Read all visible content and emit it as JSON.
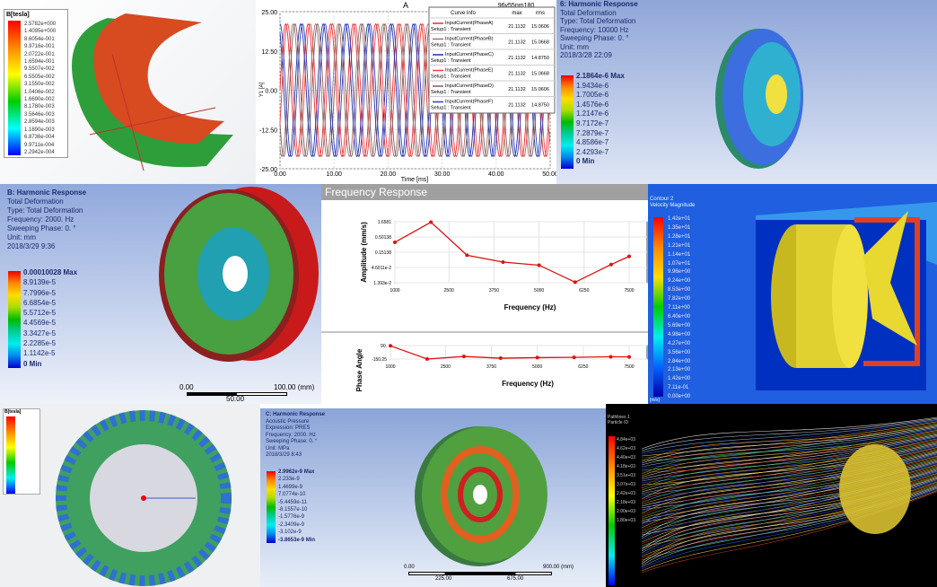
{
  "magnetic": {
    "title": "B[tesla]",
    "values": [
      "2.5782e+000",
      "1.4095e+000",
      "8.6054e-001",
      "9.9716e-001",
      "2.0722e-001",
      "1.6594e-001",
      "9.5507e-002",
      "6.5505e-002",
      "3.1550e-002",
      "1.0406e-002",
      "1.6690e-002",
      "8.1780e-003",
      "3.5646e-003",
      "2.8594e-003",
      "1.1890e-003",
      "6.8736e-004",
      "9.9711e-004",
      "2.2942e-004"
    ]
  },
  "current_chart": {
    "chart_data": {
      "type": "line",
      "title": "A",
      "subtitle": "96v55nm180",
      "ylabel": "Y1 [A]",
      "xlabel": "Time [ms]",
      "xlim": [
        0,
        50
      ],
      "ylim": [
        -25,
        25
      ],
      "xticks": [
        "0.00",
        "10.00",
        "20.00",
        "30.00",
        "40.00",
        "50.00"
      ],
      "yticks": [
        "25.00",
        "12.50",
        "0.00",
        "-12.50",
        "-25.00"
      ],
      "grid": true,
      "legend_position": "top-right",
      "legend_headers": [
        "Curve Info",
        "max",
        "rms"
      ],
      "series": [
        {
          "name": "InputCurrent(PhaseA)",
          "setup": "Setup1 : Transient",
          "max": "21.1132",
          "rms": "15.0606",
          "color": "#e03030",
          "amplitude": 21.1132,
          "frequency_hz": 240,
          "phase_deg": 0
        },
        {
          "name": "InputCurrent(PhaseB)",
          "setup": "Setup1 : Transient",
          "max": "21.1132",
          "rms": "15.0668",
          "color": "#a07070",
          "amplitude": 21.1132,
          "frequency_hz": 240,
          "phase_deg": 120
        },
        {
          "name": "InputCurrent(PhaseC)",
          "setup": "Setup1 : Transient",
          "max": "21.1132",
          "rms": "14.8750",
          "color": "#2030a0",
          "amplitude": 21.1132,
          "frequency_hz": 240,
          "phase_deg": 240
        },
        {
          "name": "InputCurrent(PhaseE)",
          "setup": "Setup1 : Transient",
          "max": "21.1132",
          "rms": "15.0668",
          "color": "#f04040",
          "amplitude": 21.1132,
          "frequency_hz": 240,
          "phase_deg": 30
        },
        {
          "name": "InputCurrent(PhaseD)",
          "setup": "Setup1 : Transient",
          "max": "21.1132",
          "rms": "15.0606",
          "color": "#806060",
          "amplitude": 21.1132,
          "frequency_hz": 240,
          "phase_deg": 150
        },
        {
          "name": "InputCurrent(PhaseF)",
          "setup": "Setup1 : Transient",
          "max": "21.1132",
          "rms": "14.8750",
          "color": "#3040c0",
          "amplitude": 21.1132,
          "frequency_hz": 240,
          "phase_deg": 270
        }
      ]
    }
  },
  "harmonic_10000": {
    "lines": [
      "6: Harmonic Response",
      "Total Deformation",
      "Type: Total Deformation",
      "Frequency: 10000 Hz",
      "Sweeping Phase: 0. °",
      "Unit: mm",
      "2018/3/28 22:09"
    ],
    "values": [
      "2.1864e-6 Max",
      "1.9434e-6",
      "1.7005e-6",
      "1.4576e-6",
      "1.2147e-6",
      "9.7172e-7",
      "7.2879e-7",
      "4.8586e-7",
      "2.4293e-7",
      "0 Min"
    ]
  },
  "harmonic_2000": {
    "lines": [
      "B: Harmonic Response",
      "Total Deformation",
      "Type: Total Deformation",
      "Frequency: 2000. Hz",
      "Sweeping Phase: 0. °",
      "Unit: mm",
      "2018/3/29 9:36"
    ],
    "values": [
      "0.00010028 Max",
      "8.9139e-5",
      "7.7996e-5",
      "6.6854e-5",
      "5.5712e-5",
      "4.4569e-5",
      "3.3427e-5",
      "2.2285e-5",
      "1.1142e-5",
      "0 Min"
    ],
    "scale": {
      "start": "0.00",
      "end": "100.00 (mm)",
      "mid": "50.00"
    }
  },
  "frequency_response": {
    "title": "Frequency Response",
    "chart_data": [
      {
        "type": "line",
        "ylabel": "Amplitude (mm/s)",
        "xlabel": "Frequency (Hz)",
        "y_scale": "log",
        "xlim": [
          1000,
          7500
        ],
        "ylim": [
          0.01393,
          1.6581
        ],
        "xticks": [
          "1000",
          "2500",
          "3750",
          "5000",
          "6250",
          "7500"
        ],
        "yticks": [
          "1.6581",
          "0.50138",
          "0.15138",
          "4.6011e-2",
          "1.393e-2"
        ],
        "color": "#e01010",
        "x": [
          1000,
          2000,
          3000,
          4000,
          5000,
          6000,
          7000,
          7500
        ],
        "y": [
          0.33,
          1.6,
          0.12,
          0.07,
          0.055,
          0.0145,
          0.058,
          0.11
        ]
      },
      {
        "type": "line",
        "ylabel": "Phase Angle",
        "xlabel": "Frequency (Hz)",
        "xlim": [
          1000,
          7500
        ],
        "ylim": [
          -150.25,
          90
        ],
        "xticks": [
          "1000",
          "2500",
          "3750",
          "5000",
          "6250",
          "7500"
        ],
        "yticks": [
          "90.",
          "-150.25"
        ],
        "color": "#e01010",
        "x": [
          1000,
          2000,
          3000,
          4000,
          5000,
          6000,
          7000,
          7500
        ],
        "y": [
          85,
          -150,
          -105,
          -135,
          -125,
          -120,
          -110,
          -112
        ]
      }
    ]
  },
  "cfd_velocity": {
    "title": [
      "Contour 2",
      "Velocity Magnitude"
    ],
    "values": [
      "1.42e+01",
      "1.35e+01",
      "1.28e+01",
      "1.21e+01",
      "1.14e+01",
      "1.07e+01",
      "9.96e+00",
      "9.24e+00",
      "8.53e+00",
      "7.82e+00",
      "7.11e+00",
      "6.40e+00",
      "5.69e+00",
      "4.98e+00",
      "4.27e+00",
      "3.56e+00",
      "2.84e+00",
      "2.13e+00",
      "1.42e+00",
      "7.11e-01",
      "0.00e+00"
    ],
    "unit": "[m/s]"
  },
  "ring_field": {
    "title": "B[tesla]"
  },
  "harmonic_acoustic": {
    "lines": [
      "C: Harmonic Response",
      "Acoustic Pressure",
      "Expression: PRES",
      "Frequency: 2000. Hz",
      "Sweeping Phase: 0. °",
      "Unit: MPa",
      "2018/3/29 8:43"
    ],
    "values": [
      "2.9962e-9 Max",
      "2.233e-9",
      "1.4699e-9",
      "7.0774e-10",
      "-5.4459e-11",
      "-8.1557e-10",
      "-1.5776e-9",
      "-2.3409e-9",
      "-3.102e-9",
      "-3.8653e-9 Min"
    ],
    "scale": {
      "start": "0.00",
      "end": "900.00 (mm)",
      "tick1": "225.00",
      "tick2": "675.00"
    }
  },
  "streamlines": {
    "title": [
      "Pathlines 1",
      "Particle ID"
    ],
    "values": [
      "4.84e+03",
      "4.62e+03",
      "4.40e+03",
      "4.18e+03",
      "3.51e+03",
      "3.07e+03",
      "2.42e+03",
      "2.18e+03",
      "2.00e+03",
      "1.80e+03"
    ]
  }
}
